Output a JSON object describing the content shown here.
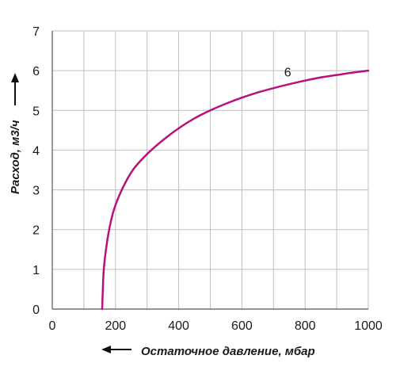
{
  "chart_data": {
    "type": "line",
    "xlabel": "Остаточное давление, мбар",
    "ylabel": "Расход, м3/ч",
    "xlim": [
      0,
      1000
    ],
    "ylim": [
      0,
      7
    ],
    "x_ticks": [
      "0",
      "200",
      "400",
      "600",
      "800",
      "1000"
    ],
    "y_ticks": [
      "0",
      "1",
      "2",
      "3",
      "4",
      "5",
      "6",
      "7"
    ],
    "grid": true,
    "series": [
      {
        "name": "6",
        "color": "#b5137a",
        "points": [
          [
            158,
            0
          ],
          [
            160,
            0.5
          ],
          [
            163,
            1.0
          ],
          [
            170,
            1.5
          ],
          [
            180,
            2.0
          ],
          [
            195,
            2.5
          ],
          [
            220,
            3.0
          ],
          [
            255,
            3.5
          ],
          [
            300,
            3.9
          ],
          [
            350,
            4.25
          ],
          [
            400,
            4.55
          ],
          [
            450,
            4.8
          ],
          [
            500,
            5.0
          ],
          [
            550,
            5.17
          ],
          [
            600,
            5.32
          ],
          [
            650,
            5.45
          ],
          [
            700,
            5.56
          ],
          [
            750,
            5.66
          ],
          [
            800,
            5.75
          ],
          [
            850,
            5.83
          ],
          [
            900,
            5.89
          ],
          [
            950,
            5.95
          ],
          [
            1000,
            6.0
          ]
        ]
      }
    ],
    "series_label_at": [
      745,
      5.85
    ]
  },
  "colors": {
    "grid": "#bdbdbd",
    "axis": "#555555",
    "curve": "#b5137a"
  },
  "icons": {
    "y_arrow": "arrow-up-icon",
    "x_arrow": "arrow-left-icon"
  }
}
